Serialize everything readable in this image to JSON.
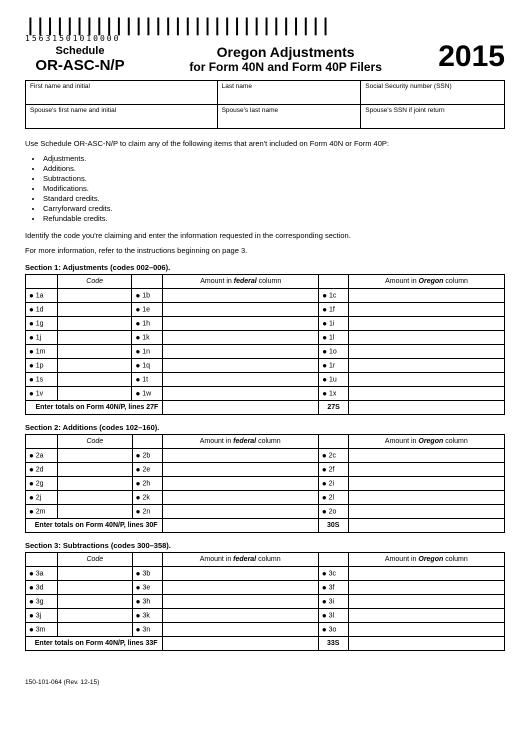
{
  "barcode_number": "15631501010000",
  "header": {
    "schedule_word": "Schedule",
    "schedule_code": "OR-ASC-N/P",
    "title_line1": "Oregon Adjustments",
    "title_line2": "for Form 40N and Form 40P Filers",
    "year": "2015"
  },
  "info_labels": {
    "r1c1": "First name and initial",
    "r1c2": "Last name",
    "r1c3": "Social Security number (SSN)",
    "r2c1": "Spouse's first name and initial",
    "r2c2": "Spouse's last name",
    "r2c3": "Spouse's SSN if joint return"
  },
  "instructions": {
    "intro": "Use Schedule OR-ASC-N/P to claim any of the following items that aren't included on Form 40N or Form 40P:",
    "items": [
      "Adjustments.",
      "Additions.",
      "Subtractions.",
      "Modifications.",
      "Standard credits.",
      "Carryforward credits.",
      "Refundable credits."
    ],
    "identify": "Identify the code you're claiming and enter the information requested in the corresponding section.",
    "moreinfo": "For more information, refer to the instructions beginning on page 3."
  },
  "col_headers": {
    "code": "Code",
    "fed": "Amount in federal column",
    "or": "Amount in Oregon column"
  },
  "section1": {
    "title": "Section 1: Adjustments (codes 002–006).",
    "rows": [
      {
        "a": "1a",
        "b": "1b",
        "c": "1c"
      },
      {
        "a": "1d",
        "b": "1e",
        "c": "1f"
      },
      {
        "a": "1g",
        "b": "1h",
        "c": "1i"
      },
      {
        "a": "1j",
        "b": "1k",
        "c": "1l"
      },
      {
        "a": "1m",
        "b": "1n",
        "c": "1o"
      },
      {
        "a": "1p",
        "b": "1q",
        "c": "1r"
      },
      {
        "a": "1s",
        "b": "1t",
        "c": "1u"
      },
      {
        "a": "1v",
        "b": "1w",
        "c": "1x"
      }
    ],
    "totals_label": "Enter totals on Form 40N/P, lines 27F",
    "totals_code": "27S"
  },
  "section2": {
    "title": "Section 2: Additions (codes 102–160).",
    "rows": [
      {
        "a": "2a",
        "b": "2b",
        "c": "2c"
      },
      {
        "a": "2d",
        "b": "2e",
        "c": "2f"
      },
      {
        "a": "2g",
        "b": "2h",
        "c": "2i"
      },
      {
        "a": "2j",
        "b": "2k",
        "c": "2l"
      },
      {
        "a": "2m",
        "b": "2n",
        "c": "2o"
      }
    ],
    "totals_label": "Enter totals on Form 40N/P, lines 30F",
    "totals_code": "30S"
  },
  "section3": {
    "title": "Section 3: Subtractions (codes 300–358).",
    "rows": [
      {
        "a": "3a",
        "b": "3b",
        "c": "3c"
      },
      {
        "a": "3d",
        "b": "3e",
        "c": "3f"
      },
      {
        "a": "3g",
        "b": "3h",
        "c": "3i"
      },
      {
        "a": "3j",
        "b": "3k",
        "c": "3l"
      },
      {
        "a": "3m",
        "b": "3n",
        "c": "3o"
      }
    ],
    "totals_label": "Enter totals on Form 40N/P, lines 33F",
    "totals_code": "33S"
  },
  "footer": "150-101-064 (Rev. 12-15)"
}
